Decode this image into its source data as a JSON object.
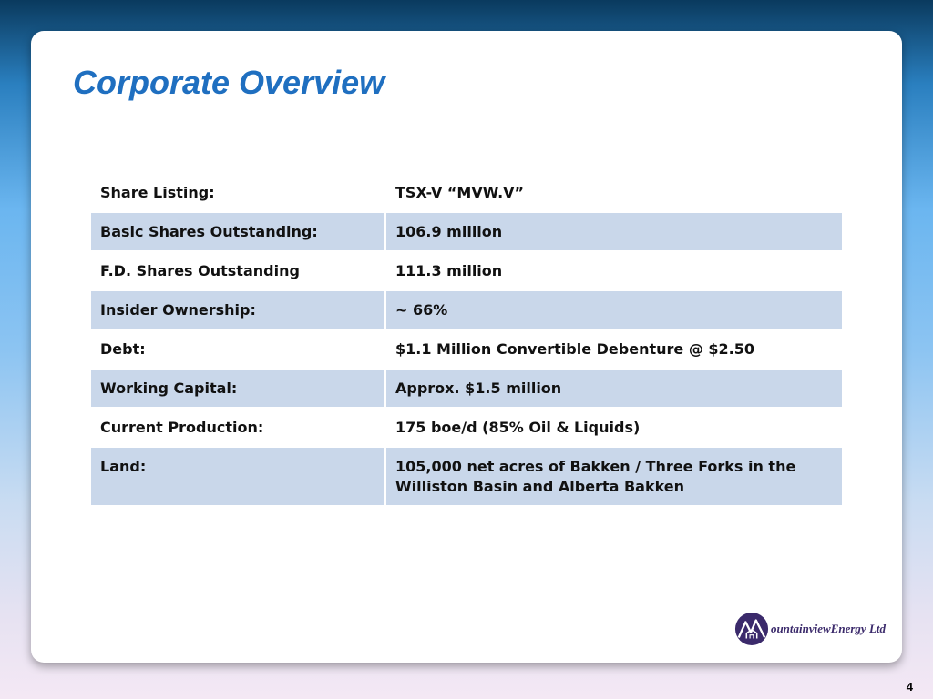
{
  "slide": {
    "title": "Corporate Overview",
    "page_number": "4"
  },
  "overview_table": {
    "rows": [
      {
        "label": "Share Listing:",
        "value": "TSX-V “MVW.V”",
        "shaded": false
      },
      {
        "label": "Basic Shares Outstanding:",
        "value": "106.9 million",
        "shaded": true
      },
      {
        "label": "F.D. Shares Outstanding",
        "value": "111.3 million",
        "shaded": false
      },
      {
        "label": "Insider Ownership:",
        "value": "~ 66%",
        "shaded": true
      },
      {
        "label": "Debt:",
        "value": "$1.1 Million Convertible Debenture @ $2.50",
        "shaded": false
      },
      {
        "label": "Working Capital:",
        "value": "Approx. $1.5 million",
        "shaded": true
      },
      {
        "label": "Current Production:",
        "value": "175 boe/d (85% Oil & Liquids)",
        "shaded": false
      },
      {
        "label": "Land:",
        "value": "105,000 net acres of Bakken / Three Forks in the Williston Basin and Alberta Bakken",
        "shaded": true
      }
    ]
  },
  "logo": {
    "text": "ountainviewEnergy Ltd",
    "icon": "mountain-logo-icon",
    "colors": {
      "mark": "#3b2a6b"
    }
  },
  "colors": {
    "title": "#1f6fc0",
    "row_shade": "#c9d7ea"
  }
}
